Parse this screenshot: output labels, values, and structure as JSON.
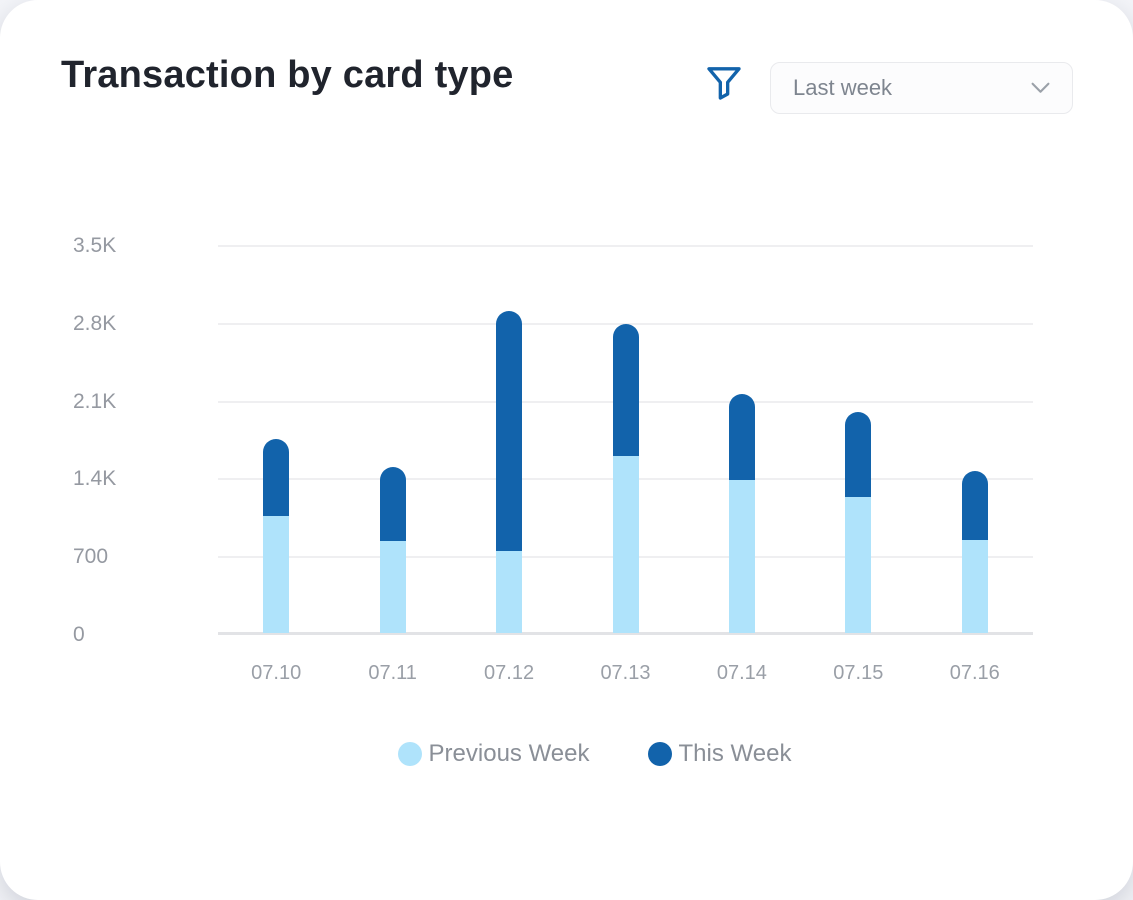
{
  "header": {
    "title": "Transaction by card type",
    "filter_icon": "filter-funnel-icon",
    "dropdown": {
      "value": "Last week",
      "icon": "chevron-down-icon"
    }
  },
  "colors": {
    "previous_week": "#AFE3FB",
    "this_week": "#1263AB",
    "filter_icon": "#1263AB",
    "title_text": "#20242D",
    "axis_text": "#9599A1",
    "legend_text": "#8A8F97",
    "gridline": "#EFEFF1",
    "baseline": "#E2E3E6",
    "page_background": "#F4F5F9",
    "card_background": "#FFFFFF",
    "dropdown_border": "#E9EAED",
    "dropdown_text": "#7E858F"
  },
  "chart_data": {
    "type": "bar",
    "stacked": true,
    "title": "Transaction by card type",
    "categories": [
      "07.10",
      "07.11",
      "07.12",
      "07.13",
      "07.14",
      "07.15",
      "07.16"
    ],
    "series": [
      {
        "name": "Previous Week",
        "color_key": "previous_week",
        "values": [
          1050,
          830,
          740,
          1590,
          1380,
          1220,
          840
        ]
      },
      {
        "name": "This Week",
        "color_key": "this_week",
        "values": [
          700,
          660,
          2160,
          1190,
          770,
          770,
          620
        ]
      }
    ],
    "stack_totals": [
      1750,
      1490,
      2900,
      2780,
      2150,
      1990,
      1460
    ],
    "y_ticks": [
      "3.5K",
      "2.8K",
      "2.1K",
      "1.4K",
      "700",
      "0"
    ],
    "y_tick_values": [
      3500,
      2800,
      2100,
      1400,
      700,
      0
    ],
    "ylim": [
      0,
      3500
    ],
    "xlabel": "",
    "ylabel": "",
    "grid": true,
    "legend_position": "bottom"
  },
  "legend": {
    "items": [
      {
        "label": "Previous Week",
        "color_key": "previous_week"
      },
      {
        "label": "This Week",
        "color_key": "this_week"
      }
    ]
  }
}
